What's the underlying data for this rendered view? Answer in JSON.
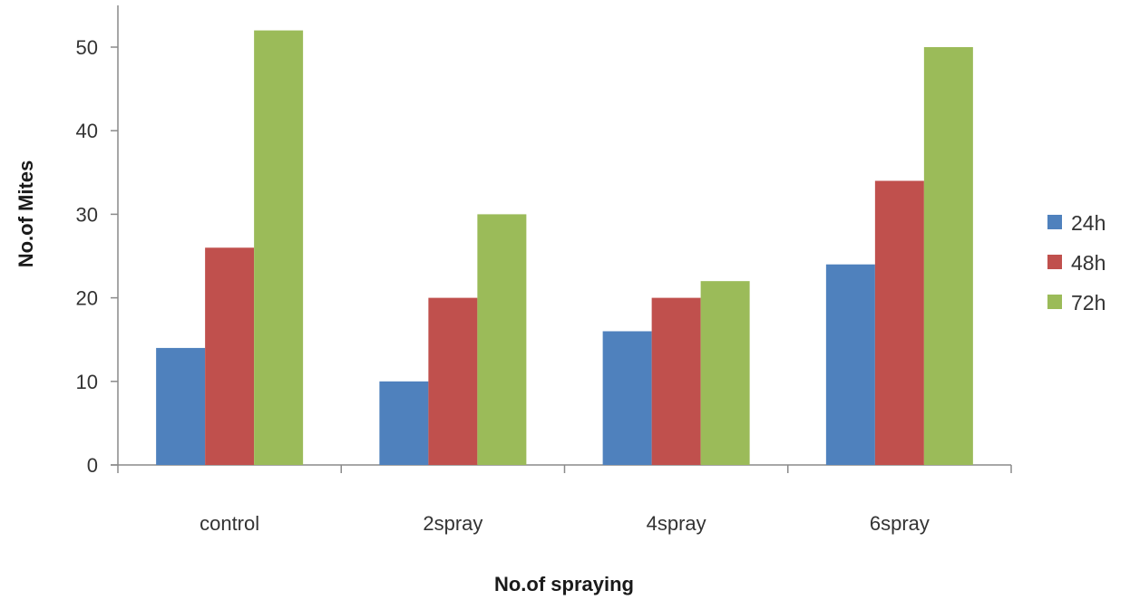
{
  "chart_data": {
    "type": "bar",
    "title": "",
    "xlabel": "No.of spraying",
    "ylabel": "No.of Mites",
    "categories": [
      "control",
      "2spray",
      "4spray",
      "6spray"
    ],
    "series": [
      {
        "name": "24h",
        "color": "#4f81bd",
        "values": [
          14,
          10,
          16,
          24
        ]
      },
      {
        "name": "48h",
        "color": "#c0504d",
        "values": [
          26,
          20,
          20,
          34
        ]
      },
      {
        "name": "72h",
        "color": "#9bbb59",
        "values": [
          52,
          30,
          22,
          50
        ]
      }
    ],
    "ylim": [
      0,
      55
    ],
    "yticks": [
      0,
      10,
      20,
      30,
      40,
      50
    ],
    "grid": false,
    "legend_position": "right"
  }
}
